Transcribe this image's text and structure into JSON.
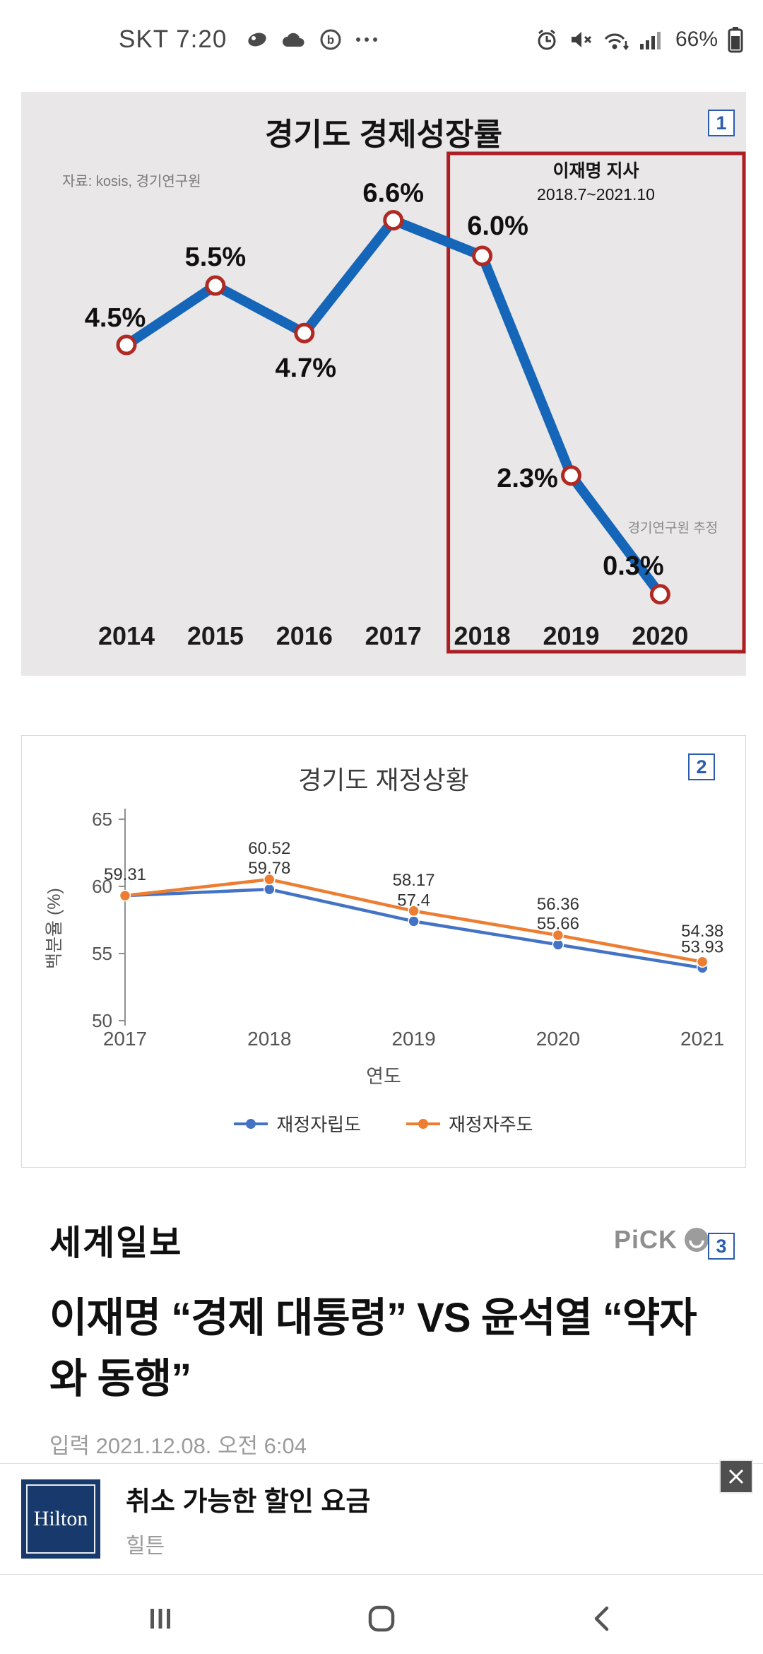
{
  "status_bar": {
    "carrier_and_time": "SKT 7:20",
    "battery_percent": "66%",
    "left_icons": [
      "badge-icon",
      "cloud-icon",
      "circle-b-icon",
      "more-notifications-icon"
    ],
    "right_icons": [
      "alarm-icon",
      "mute-icon",
      "wifi-icon",
      "signal-icon",
      "battery-icon"
    ]
  },
  "chart_data": [
    {
      "type": "line",
      "title": "경기도 경제성장률",
      "source": "자료: kosis, 경기연구원",
      "badge": "1",
      "categories": [
        "2014",
        "2015",
        "2016",
        "2017",
        "2018",
        "2019",
        "2020"
      ],
      "values": [
        4.5,
        5.5,
        4.7,
        6.6,
        6.0,
        2.3,
        0.3
      ],
      "labels": [
        "4.5%",
        "5.5%",
        "4.7%",
        "6.6%",
        "6.0%",
        "2.3%",
        "0.3%"
      ],
      "annotation": "경기연구원 추정",
      "highlight": {
        "from": "2018",
        "to": "2020",
        "label_line1": "이재명 지사",
        "label_line2": "2018.7~2021.10",
        "box_color": "#ab1f24"
      },
      "line_color": "#1565b8",
      "marker_color": "#b02a23",
      "ylim": [
        0,
        7
      ],
      "grid": false,
      "legend_position": "none"
    },
    {
      "type": "line",
      "title": "경기도 재정상황",
      "badge": "2",
      "categories": [
        "2017",
        "2018",
        "2019",
        "2020",
        "2021"
      ],
      "series": [
        {
          "name": "재정자립도",
          "color": "#4472c4",
          "values": [
            59.31,
            59.78,
            57.4,
            55.66,
            53.93
          ],
          "labels": [
            "59.31",
            "59.78",
            "57.4",
            "55.66",
            "53.93"
          ]
        },
        {
          "name": "재정자주도",
          "color": "#ed7d31",
          "values": [
            59.31,
            60.52,
            58.17,
            56.36,
            54.38
          ],
          "labels": [
            "",
            "60.52",
            "58.17",
            "56.36",
            "54.38"
          ]
        }
      ],
      "xlabel": "연도",
      "ylabel": "백분율 (%)",
      "yticks": [
        50,
        55,
        60,
        65
      ],
      "ylim": [
        50,
        65
      ],
      "grid": false,
      "legend_position": "bottom"
    }
  ],
  "article": {
    "publisher": "세계일보",
    "pick_label": "PiCK",
    "badge": "3",
    "headline": "이재명 “경제 대통령” VS 윤석열 “약자와 동행”",
    "posted": "입력 2021.12.08. 오전 6:04"
  },
  "ad": {
    "brand_logo_text": "Hilton",
    "title": "취소 가능한 할인 요금",
    "advertiser": "힐튼"
  },
  "nav_bar": {
    "items": [
      "recents-icon",
      "home-icon",
      "back-icon"
    ]
  }
}
